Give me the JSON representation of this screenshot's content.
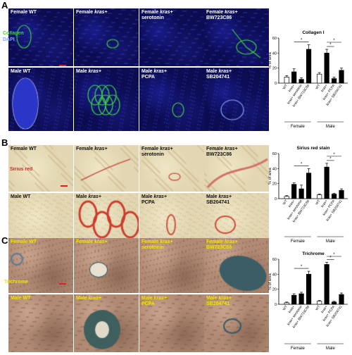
{
  "panels": [
    {
      "letter": "A",
      "rows": [
        [
          {
            "parts": [
              {
                "t": "Female WT",
                "i": false
              }
            ]
          },
          {
            "parts": [
              {
                "t": "Female ",
                "i": false
              },
              {
                "t": "kras+",
                "i": true
              }
            ]
          },
          {
            "parts": [
              {
                "t": "Female ",
                "i": false
              },
              {
                "t": "kras+",
                "i": true
              },
              {
                "t": "\nserotonin",
                "i": false
              }
            ]
          },
          {
            "parts": [
              {
                "t": "Female ",
                "i": false
              },
              {
                "t": "kras+",
                "i": true
              },
              {
                "t": "\nBW723C86",
                "i": false
              }
            ]
          }
        ],
        [
          {
            "parts": [
              {
                "t": "Male WT",
                "i": false
              }
            ]
          },
          {
            "parts": [
              {
                "t": "Male ",
                "i": false
              },
              {
                "t": "kras+",
                "i": true
              }
            ]
          },
          {
            "parts": [
              {
                "t": "Male ",
                "i": false
              },
              {
                "t": "kras+",
                "i": true
              },
              {
                "t": "\nPCPA",
                "i": false
              }
            ]
          },
          {
            "parts": [
              {
                "t": "Male ",
                "i": false
              },
              {
                "t": "kras+",
                "i": true
              },
              {
                "t": "\nSB204741",
                "i": false
              }
            ]
          }
        ]
      ],
      "stain_labels": [
        {
          "text": "Collagen",
          "color": "#3fd23f"
        },
        {
          "text": "DAPI",
          "color": "#7aa6ff"
        }
      ],
      "label_color": "#ffffff"
    },
    {
      "letter": "B",
      "rows": [
        [
          {
            "parts": [
              {
                "t": "Female WT",
                "i": false
              }
            ]
          },
          {
            "parts": [
              {
                "t": "Female ",
                "i": false
              },
              {
                "t": "kras+",
                "i": true
              }
            ]
          },
          {
            "parts": [
              {
                "t": "Female ",
                "i": false
              },
              {
                "t": "kras+",
                "i": true
              },
              {
                "t": "\nserotonin",
                "i": false
              }
            ]
          },
          {
            "parts": [
              {
                "t": "Female ",
                "i": false
              },
              {
                "t": "kras+",
                "i": true
              },
              {
                "t": "\nBW723C86",
                "i": false
              }
            ]
          }
        ],
        [
          {
            "parts": [
              {
                "t": "Male WT",
                "i": false
              }
            ]
          },
          {
            "parts": [
              {
                "t": "Male ",
                "i": false
              },
              {
                "t": "kras+",
                "i": true
              }
            ]
          },
          {
            "parts": [
              {
                "t": "Male ",
                "i": false
              },
              {
                "t": "kras+",
                "i": true
              },
              {
                "t": "\nPCPA",
                "i": false
              }
            ]
          },
          {
            "parts": [
              {
                "t": "Male ",
                "i": false
              },
              {
                "t": "kras+",
                "i": true
              },
              {
                "t": "\nSB204741",
                "i": false
              }
            ]
          }
        ]
      ],
      "stain_labels": [
        {
          "text": "Sirius red",
          "color": "#d62a2a"
        }
      ],
      "label_color": "#111111"
    },
    {
      "letter": "C",
      "rows": [
        [
          {
            "parts": [
              {
                "t": "Female WT",
                "i": false
              }
            ]
          },
          {
            "parts": [
              {
                "t": "Female ",
                "i": false
              },
              {
                "t": "kras+",
                "i": true
              }
            ]
          },
          {
            "parts": [
              {
                "t": "Female ",
                "i": false
              },
              {
                "t": "kras+",
                "i": true
              },
              {
                "t": "\nserotonin",
                "i": false
              }
            ]
          },
          {
            "parts": [
              {
                "t": "Female ",
                "i": false
              },
              {
                "t": "kras+",
                "i": true
              },
              {
                "t": "\nBW723C86",
                "i": false
              }
            ]
          }
        ],
        [
          {
            "parts": [
              {
                "t": "Male WT",
                "i": false
              }
            ]
          },
          {
            "parts": [
              {
                "t": "Male ",
                "i": false
              },
              {
                "t": "kras+",
                "i": true
              }
            ]
          },
          {
            "parts": [
              {
                "t": "Male ",
                "i": false
              },
              {
                "t": "kras+",
                "i": true
              },
              {
                "t": "\nPCPA",
                "i": false
              }
            ]
          },
          {
            "parts": [
              {
                "t": "Male ",
                "i": false
              },
              {
                "t": "kras+",
                "i": true
              },
              {
                "t": "\nSB204741",
                "i": false
              }
            ]
          }
        ]
      ],
      "stain_labels": [
        {
          "text": "Trichrome",
          "color": "#f2e600"
        }
      ],
      "label_color": "#f2e600"
    }
  ],
  "colors": {
    "scalebar": "#e02020",
    "open_bar": "#ffffff",
    "filled_bar": "#000000"
  },
  "chart_data": [
    {
      "type": "bar",
      "title": "Collagen I",
      "ylabel": "% of area",
      "ylim": [
        0,
        60
      ],
      "yticks": [
        0,
        20,
        40,
        60
      ],
      "categories": [
        "WT",
        "kras+",
        "kras+ serotonin",
        "kras+ BW723C86",
        "WT",
        "kras+",
        "kras+ PCPA",
        "kras+ SB204741"
      ],
      "groups": [
        {
          "label": "Female",
          "indices": [
            0,
            1,
            2,
            3
          ]
        },
        {
          "label": "Male",
          "indices": [
            4,
            5,
            6,
            7
          ]
        }
      ],
      "values": [
        8,
        15,
        5,
        45,
        12,
        40,
        6,
        17
      ],
      "errors": [
        2,
        4,
        2,
        6,
        2,
        5,
        2,
        3
      ],
      "open": [
        true,
        false,
        false,
        false,
        true,
        false,
        false,
        false
      ],
      "significance": [
        {
          "from": 1,
          "to": 3,
          "label": "*"
        },
        {
          "from": 5,
          "to": 6,
          "label": "*"
        },
        {
          "from": 5,
          "to": 7,
          "label": "*"
        }
      ]
    },
    {
      "type": "bar",
      "title": "Sirius red stain",
      "ylabel": "% of area",
      "ylim": [
        0,
        60
      ],
      "yticks": [
        0,
        20,
        40,
        60
      ],
      "categories": [
        "WT",
        "kras+",
        "kras+ serotonin",
        "kras+ BW723C86",
        "WT",
        "kras+",
        "kras+ PCPA",
        "kras+ SB204741"
      ],
      "groups": [
        {
          "label": "Female",
          "indices": [
            0,
            1,
            2,
            3
          ]
        },
        {
          "label": "Male",
          "indices": [
            4,
            5,
            6,
            7
          ]
        }
      ],
      "values": [
        3,
        19,
        13,
        34,
        5,
        42,
        6,
        11
      ],
      "errors": [
        1,
        2,
        5,
        6,
        1,
        5,
        1,
        2
      ],
      "open": [
        true,
        false,
        false,
        false,
        true,
        false,
        false,
        false
      ],
      "significance": [
        {
          "from": 1,
          "to": 3,
          "label": "*"
        },
        {
          "from": 5,
          "to": 6,
          "label": "*"
        },
        {
          "from": 5,
          "to": 7,
          "label": "*"
        }
      ]
    },
    {
      "type": "bar",
      "title": "Trichrome",
      "ylabel": "% of area",
      "ylim": [
        0,
        60
      ],
      "yticks": [
        0,
        20,
        40,
        60
      ],
      "categories": [
        "WT",
        "kras+",
        "kras+ serotonin",
        "kras+ BW723C86",
        "WT",
        "kras+",
        "kras+ PCPA",
        "kras+ SB204741"
      ],
      "groups": [
        {
          "label": "Female",
          "indices": [
            0,
            1,
            2,
            3
          ]
        },
        {
          "label": "Male",
          "indices": [
            4,
            5,
            6,
            7
          ]
        }
      ],
      "values": [
        2,
        12,
        14,
        40,
        4,
        53,
        3,
        13
      ],
      "errors": [
        1,
        2,
        2,
        4,
        1,
        3,
        1,
        2
      ],
      "open": [
        true,
        false,
        false,
        false,
        true,
        false,
        false,
        false
      ],
      "significance": [
        {
          "from": 1,
          "to": 3,
          "label": "*"
        },
        {
          "from": 5,
          "to": 6,
          "label": "*"
        },
        {
          "from": 5,
          "to": 7,
          "label": "*"
        }
      ]
    }
  ]
}
